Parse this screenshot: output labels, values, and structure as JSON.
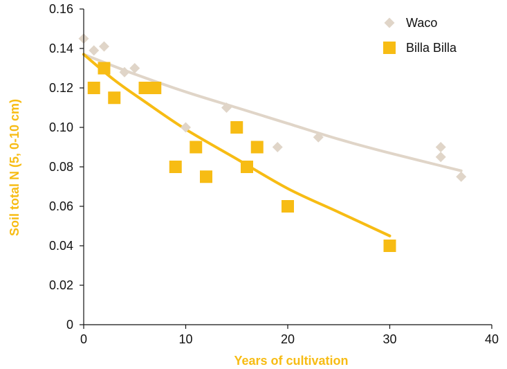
{
  "colors": {
    "waco": "#e0d5c8",
    "billa": "#f7bc14",
    "axis": "#111111",
    "axis_title": "#f7bc14"
  },
  "chart_data": {
    "type": "scatter",
    "xlabel": "Years of cultivation",
    "ylabel": "Soil total N (5, 0-10 cm)",
    "xlim": [
      0,
      40
    ],
    "ylim": [
      0,
      0.16
    ],
    "xticks": [
      0,
      10,
      20,
      30,
      40
    ],
    "xtick_labels": [
      "0",
      "10",
      "20",
      "30",
      "40"
    ],
    "yticks": [
      0,
      0.02,
      0.04,
      0.06,
      0.08,
      0.1,
      0.12,
      0.14,
      0.16
    ],
    "ytick_labels": [
      "0",
      "0.02",
      "0.04",
      "0.06",
      "0.08",
      "0.10",
      "0.12",
      "0.14",
      "0.16"
    ],
    "grid": false,
    "legend_position": "top-right",
    "series": [
      {
        "name": "Waco",
        "marker": "diamond",
        "color": "#e0d5c8",
        "points": [
          [
            0,
            0.145
          ],
          [
            1,
            0.139
          ],
          [
            2,
            0.141
          ],
          [
            4,
            0.128
          ],
          [
            5,
            0.13
          ],
          [
            10,
            0.1
          ],
          [
            14,
            0.11
          ],
          [
            19,
            0.09
          ],
          [
            23,
            0.095
          ],
          [
            35,
            0.09
          ],
          [
            35,
            0.085
          ],
          [
            37,
            0.075
          ]
        ],
        "trend": {
          "x": [
            0,
            5,
            10,
            15,
            20,
            25,
            30,
            37
          ],
          "y": [
            0.137,
            0.127,
            0.118,
            0.11,
            0.102,
            0.094,
            0.087,
            0.078
          ]
        }
      },
      {
        "name": "Billa Billa",
        "marker": "square",
        "color": "#f7bc14",
        "points": [
          [
            1,
            0.12
          ],
          [
            2,
            0.13
          ],
          [
            3,
            0.115
          ],
          [
            6,
            0.12
          ],
          [
            7,
            0.12
          ],
          [
            9,
            0.08
          ],
          [
            11,
            0.09
          ],
          [
            12,
            0.075
          ],
          [
            15,
            0.1
          ],
          [
            16,
            0.08
          ],
          [
            17,
            0.09
          ],
          [
            20,
            0.06
          ],
          [
            30,
            0.04
          ]
        ],
        "trend": {
          "x": [
            0,
            3,
            6,
            10,
            15,
            20,
            25,
            30
          ],
          "y": [
            0.137,
            0.124,
            0.113,
            0.099,
            0.084,
            0.069,
            0.057,
            0.045
          ]
        }
      }
    ]
  }
}
